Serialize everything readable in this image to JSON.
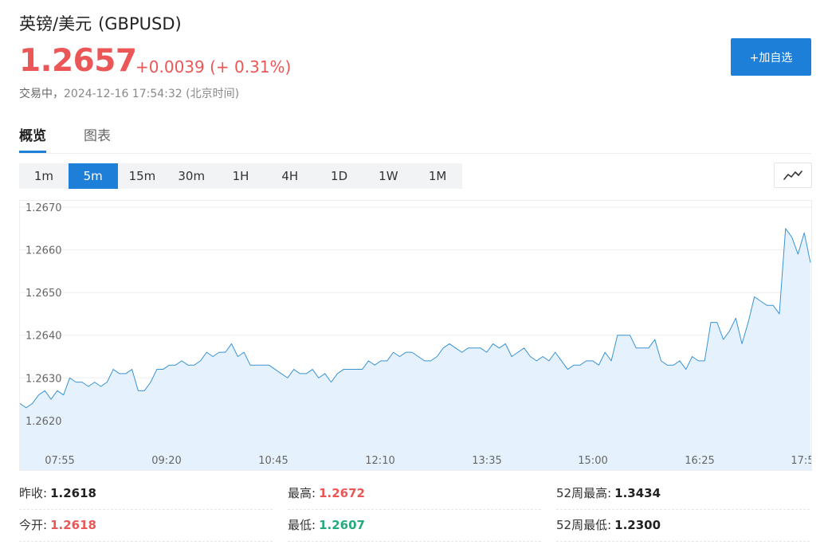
{
  "header": {
    "name": "英镑/美元",
    "code": "(GBPUSD)",
    "price": "1.2657",
    "change": "+0.0039 (+ 0.31%)",
    "status": "交易中，",
    "timestamp": "2024-12-16 17:54:32 (北京时间)",
    "add_button_label": "+加自选"
  },
  "tabs": [
    {
      "label": "概览",
      "active": true
    },
    {
      "label": "图表",
      "active": false
    }
  ],
  "periods": [
    {
      "label": "1m",
      "active": false
    },
    {
      "label": "5m",
      "active": true
    },
    {
      "label": "15m",
      "active": false
    },
    {
      "label": "30m",
      "active": false
    },
    {
      "label": "1H",
      "active": false
    },
    {
      "label": "4H",
      "active": false
    },
    {
      "label": "1D",
      "active": false
    },
    {
      "label": "1W",
      "active": false
    },
    {
      "label": "1M",
      "active": false
    }
  ],
  "chart_toggle_icon": "line-chart-icon",
  "chart_data": {
    "type": "area",
    "y_ticks": [
      "1.2620",
      "1.2630",
      "1.2640",
      "1.2650",
      "1.2660",
      "1.2670"
    ],
    "x_ticks": [
      "07:55",
      "09:20",
      "10:45",
      "12:10",
      "13:35",
      "15:00",
      "16:25",
      "17:5"
    ],
    "ylim": [
      1.26125,
      1.26715
    ],
    "line_color": "#3a93d3",
    "fill_color": "#e5f2fd",
    "grid": true,
    "series": [
      {
        "values": [
          1.2624,
          1.2623,
          1.2624,
          1.2626,
          1.2627,
          1.2625,
          1.2627,
          1.2626,
          1.263,
          1.2629,
          1.2629,
          1.2628,
          1.2629,
          1.2628,
          1.2629,
          1.2632,
          1.2631,
          1.2631,
          1.2632,
          1.2627,
          1.2627,
          1.2629,
          1.2632,
          1.2632,
          1.2633,
          1.2633,
          1.2634,
          1.2633,
          1.2633,
          1.2634,
          1.2636,
          1.2635,
          1.2636,
          1.2636,
          1.2638,
          1.2635,
          1.2636,
          1.2633,
          1.2633,
          1.2633,
          1.2633,
          1.2632,
          1.2631,
          1.263,
          1.2632,
          1.2631,
          1.2631,
          1.2632,
          1.263,
          1.2631,
          1.2629,
          1.2631,
          1.2632,
          1.2632,
          1.2632,
          1.2632,
          1.2634,
          1.2633,
          1.2634,
          1.2634,
          1.2636,
          1.2635,
          1.2636,
          1.2636,
          1.2635,
          1.2634,
          1.2634,
          1.2635,
          1.2637,
          1.2638,
          1.2637,
          1.2636,
          1.2637,
          1.2637,
          1.2637,
          1.2636,
          1.2638,
          1.2637,
          1.2638,
          1.2635,
          1.2636,
          1.2637,
          1.2635,
          1.2634,
          1.2635,
          1.2634,
          1.2636,
          1.2634,
          1.2632,
          1.2633,
          1.2633,
          1.2634,
          1.2634,
          1.2633,
          1.2636,
          1.2634,
          1.264,
          1.264,
          1.264,
          1.2637,
          1.2637,
          1.2637,
          1.2639,
          1.2634,
          1.2633,
          1.2633,
          1.2634,
          1.2632,
          1.2635,
          1.2634,
          1.2634,
          1.2643,
          1.2643,
          1.2639,
          1.2641,
          1.2644,
          1.2638,
          1.2643,
          1.2649,
          1.2648,
          1.2647,
          1.2647,
          1.2645,
          1.2665,
          1.2663,
          1.2659,
          1.2664,
          1.2657
        ]
      }
    ]
  },
  "stats": [
    {
      "label": "昨收:",
      "value": "1.2618",
      "color": "black"
    },
    {
      "label": "最高:",
      "value": "1.2672",
      "color": "red"
    },
    {
      "label": "52周最高:",
      "value": "1.3434",
      "color": "black"
    },
    {
      "label": "今开:",
      "value": "1.2618",
      "color": "red"
    },
    {
      "label": "最低:",
      "value": "1.2607",
      "color": "green"
    },
    {
      "label": "52周最低:",
      "value": "1.2300",
      "color": "black"
    }
  ]
}
